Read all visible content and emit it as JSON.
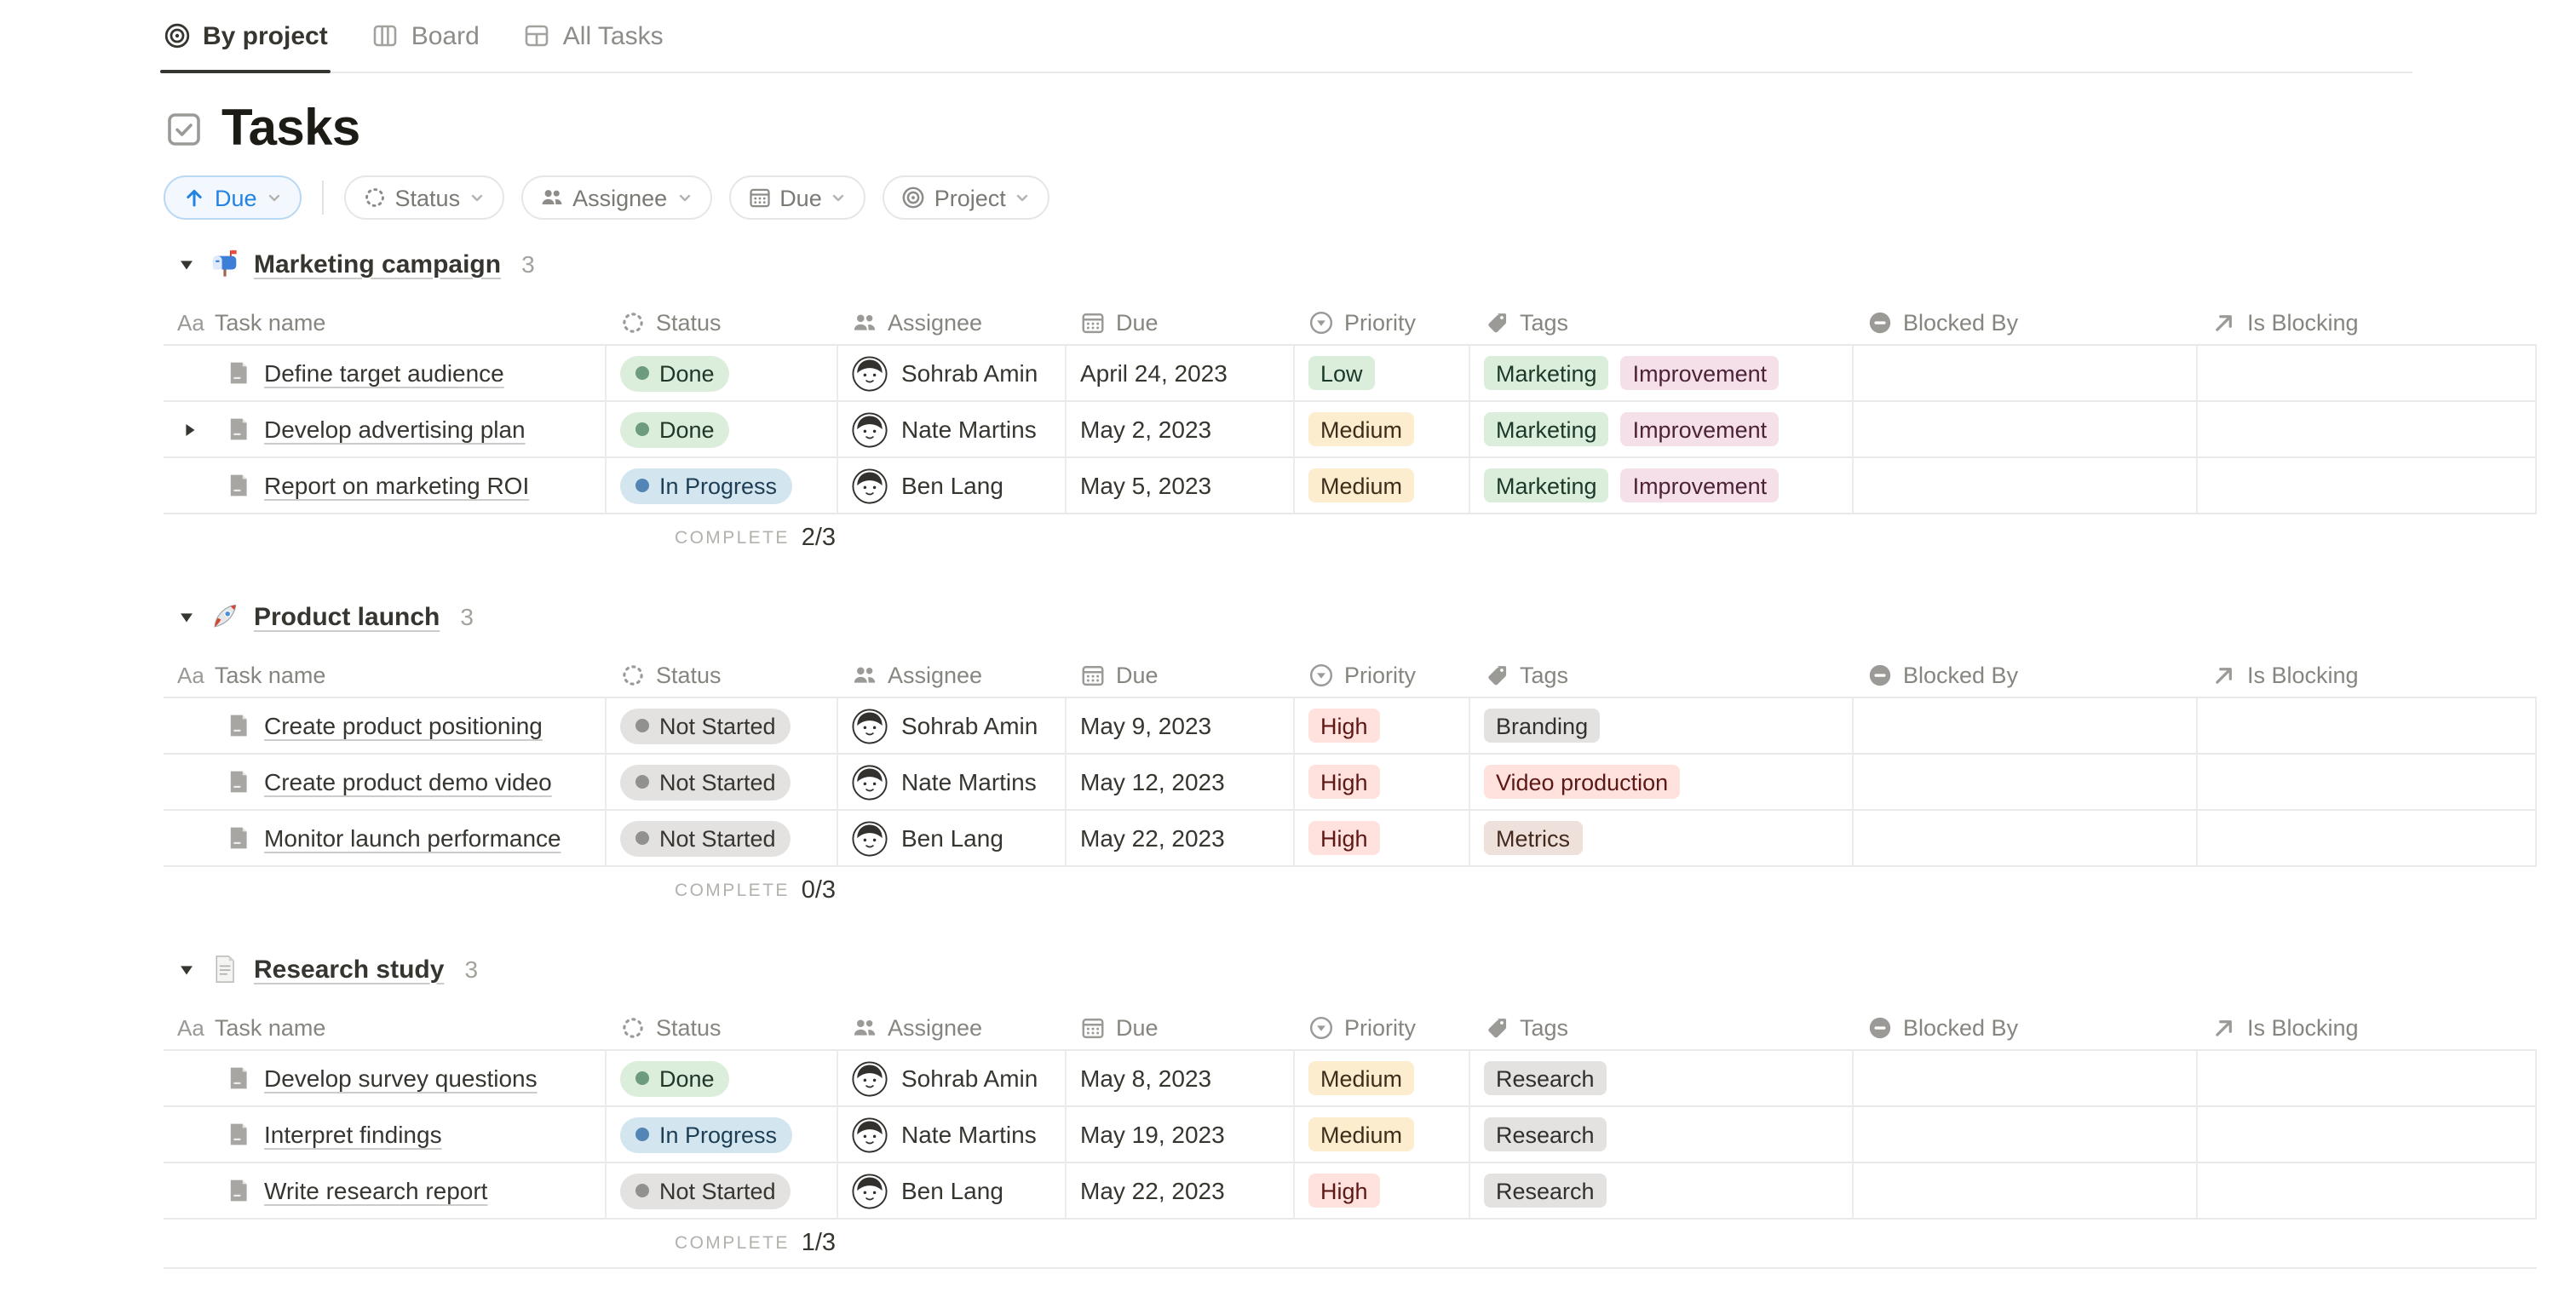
{
  "tabs": [
    {
      "label": "By project",
      "icon": "target",
      "active": true
    },
    {
      "label": "Board",
      "icon": "board",
      "active": false
    },
    {
      "label": "All Tasks",
      "icon": "table",
      "active": false
    }
  ],
  "page": {
    "title": "Tasks",
    "title_icon": "checkbox"
  },
  "toolbar": {
    "sort": {
      "label": "Due",
      "icon": "arrow-up"
    },
    "filters": [
      {
        "label": "Status",
        "icon": "spinner"
      },
      {
        "label": "Assignee",
        "icon": "people"
      },
      {
        "label": "Due",
        "icon": "calendar"
      },
      {
        "label": "Project",
        "icon": "target"
      }
    ]
  },
  "table": {
    "headers": [
      {
        "label": "Task name",
        "icon": "aa"
      },
      {
        "label": "Status",
        "icon": "spinner"
      },
      {
        "label": "Assignee",
        "icon": "people"
      },
      {
        "label": "Due",
        "icon": "calendar"
      },
      {
        "label": "Priority",
        "icon": "priority"
      },
      {
        "label": "Tags",
        "icon": "tag"
      },
      {
        "label": "Blocked By",
        "icon": "blocked"
      },
      {
        "label": "Is Blocking",
        "icon": "arrow-up-right"
      }
    ]
  },
  "complete_label": "COMPLETE",
  "groups": [
    {
      "icon": "mailbox",
      "name": "Marketing campaign",
      "count": "3",
      "complete_value": "2/3",
      "rows": [
        {
          "name": "Define target audience",
          "expandable": false,
          "status": {
            "label": "Done",
            "type": "done"
          },
          "assignee": "Sohrab Amin",
          "due": "April 24, 2023",
          "priority": {
            "label": "Low",
            "type": "green"
          },
          "tags": [
            {
              "label": "Marketing",
              "type": "green"
            },
            {
              "label": "Improvement",
              "type": "pink"
            }
          ],
          "blocked_by": "",
          "is_blocking": ""
        },
        {
          "name": "Develop advertising plan",
          "expandable": true,
          "status": {
            "label": "Done",
            "type": "done"
          },
          "assignee": "Nate Martins",
          "due": "May 2, 2023",
          "priority": {
            "label": "Medium",
            "type": "yellow"
          },
          "tags": [
            {
              "label": "Marketing",
              "type": "green"
            },
            {
              "label": "Improvement",
              "type": "pink"
            }
          ],
          "blocked_by": "",
          "is_blocking": ""
        },
        {
          "name": "Report on marketing ROI",
          "expandable": false,
          "status": {
            "label": "In Progress",
            "type": "inprogress"
          },
          "assignee": "Ben Lang",
          "due": "May 5, 2023",
          "priority": {
            "label": "Medium",
            "type": "yellow"
          },
          "tags": [
            {
              "label": "Marketing",
              "type": "green"
            },
            {
              "label": "Improvement",
              "type": "pink"
            }
          ],
          "blocked_by": "",
          "is_blocking": ""
        }
      ]
    },
    {
      "icon": "rocket",
      "name": "Product launch",
      "count": "3",
      "complete_value": "0/3",
      "rows": [
        {
          "name": "Create product positioning",
          "expandable": false,
          "status": {
            "label": "Not Started",
            "type": "notstarted"
          },
          "assignee": "Sohrab Amin",
          "due": "May 9, 2023",
          "priority": {
            "label": "High",
            "type": "red"
          },
          "tags": [
            {
              "label": "Branding",
              "type": "gray"
            }
          ],
          "blocked_by": "",
          "is_blocking": ""
        },
        {
          "name": "Create product demo video",
          "expandable": false,
          "status": {
            "label": "Not Started",
            "type": "notstarted"
          },
          "assignee": "Nate Martins",
          "due": "May 12, 2023",
          "priority": {
            "label": "High",
            "type": "red"
          },
          "tags": [
            {
              "label": "Video production",
              "type": "red"
            }
          ],
          "blocked_by": "",
          "is_blocking": ""
        },
        {
          "name": "Monitor launch performance",
          "expandable": false,
          "status": {
            "label": "Not Started",
            "type": "notstarted"
          },
          "assignee": "Ben Lang",
          "due": "May 22, 2023",
          "priority": {
            "label": "High",
            "type": "red"
          },
          "tags": [
            {
              "label": "Metrics",
              "type": "brown"
            }
          ],
          "blocked_by": "",
          "is_blocking": ""
        }
      ]
    },
    {
      "icon": "page",
      "name": "Research study",
      "count": "3",
      "complete_value": "1/3",
      "rows": [
        {
          "name": "Develop survey questions",
          "expandable": false,
          "status": {
            "label": "Done",
            "type": "done"
          },
          "assignee": "Sohrab Amin",
          "due": "May 8, 2023",
          "priority": {
            "label": "Medium",
            "type": "yellow"
          },
          "tags": [
            {
              "label": "Research",
              "type": "gray"
            }
          ],
          "blocked_by": "",
          "is_blocking": ""
        },
        {
          "name": "Interpret findings",
          "expandable": false,
          "status": {
            "label": "In Progress",
            "type": "inprogress"
          },
          "assignee": "Nate Martins",
          "due": "May 19, 2023",
          "priority": {
            "label": "Medium",
            "type": "yellow"
          },
          "tags": [
            {
              "label": "Research",
              "type": "gray"
            }
          ],
          "blocked_by": "",
          "is_blocking": ""
        },
        {
          "name": "Write research report",
          "expandable": false,
          "status": {
            "label": "Not Started",
            "type": "notstarted"
          },
          "assignee": "Ben Lang",
          "due": "May 22, 2023",
          "priority": {
            "label": "High",
            "type": "red"
          },
          "tags": [
            {
              "label": "Research",
              "type": "gray"
            }
          ],
          "blocked_by": "",
          "is_blocking": ""
        }
      ]
    }
  ],
  "colors": {
    "accent_blue": "#2383e2",
    "status_done_bg": "#dbeddb",
    "status_done_dot": "#6c9b7d",
    "status_inprogress_bg": "#d3e5ef",
    "status_inprogress_dot": "#5385b5",
    "status_notstarted_bg": "#e3e2e0",
    "status_notstarted_dot": "#91918e",
    "chip_green_bg": "#dbeddb",
    "chip_yellow_bg": "#fbedcd",
    "chip_red_bg": "#ffe2dd",
    "chip_pink_bg": "#f5e0e9",
    "chip_gray_bg": "#e3e2e0",
    "chip_brown_bg": "#eee0da",
    "divider": "#e9e9e7"
  }
}
